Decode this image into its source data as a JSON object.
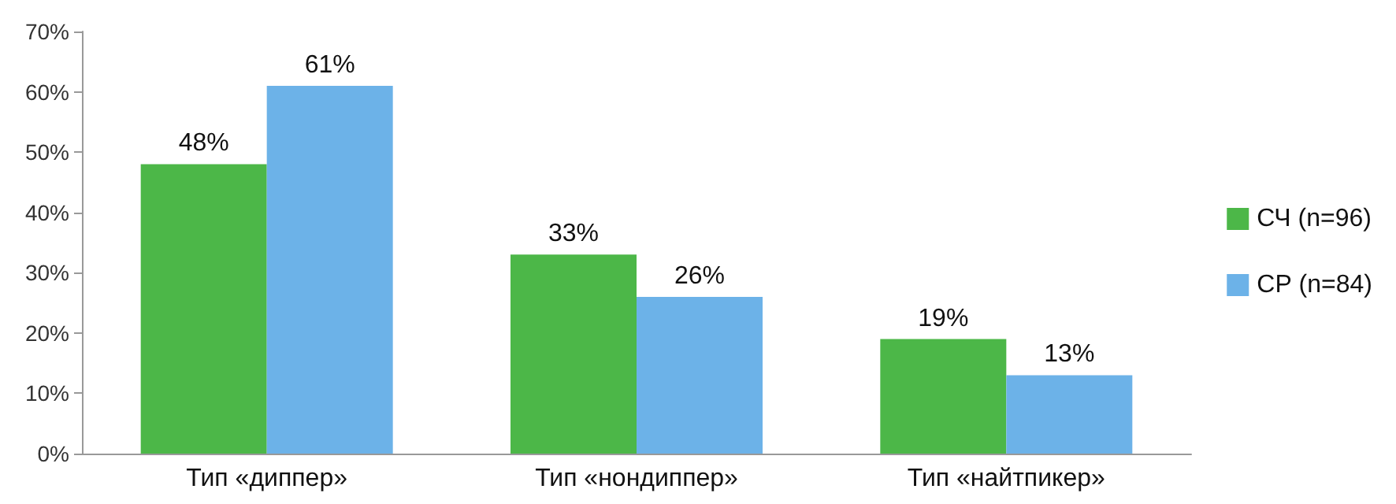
{
  "chart_data": {
    "type": "bar",
    "categories": [
      "Тип «диппер»",
      "Тип «нондиппер»",
      "Тип «найтпикер»"
    ],
    "series": [
      {
        "name": "СЧ (n=96)",
        "color": "#4cb748",
        "values": [
          48,
          33,
          19
        ],
        "value_labels": [
          "48%",
          "33%",
          "19%"
        ]
      },
      {
        "name": "СР (n=84)",
        "color": "#6cb2e8",
        "values": [
          61,
          26,
          13
        ],
        "value_labels": [
          "61%",
          "26%",
          "13%"
        ]
      }
    ],
    "ylim": [
      0,
      70
    ],
    "yticks": [
      {
        "value": 0,
        "label": "0%"
      },
      {
        "value": 10,
        "label": "10%"
      },
      {
        "value": 20,
        "label": "20%"
      },
      {
        "value": 30,
        "label": "30%"
      },
      {
        "value": 40,
        "label": "40%"
      },
      {
        "value": 50,
        "label": "50%"
      },
      {
        "value": 60,
        "label": "60%"
      },
      {
        "value": 70,
        "label": "70%"
      }
    ],
    "grid": false,
    "legend": "right"
  }
}
